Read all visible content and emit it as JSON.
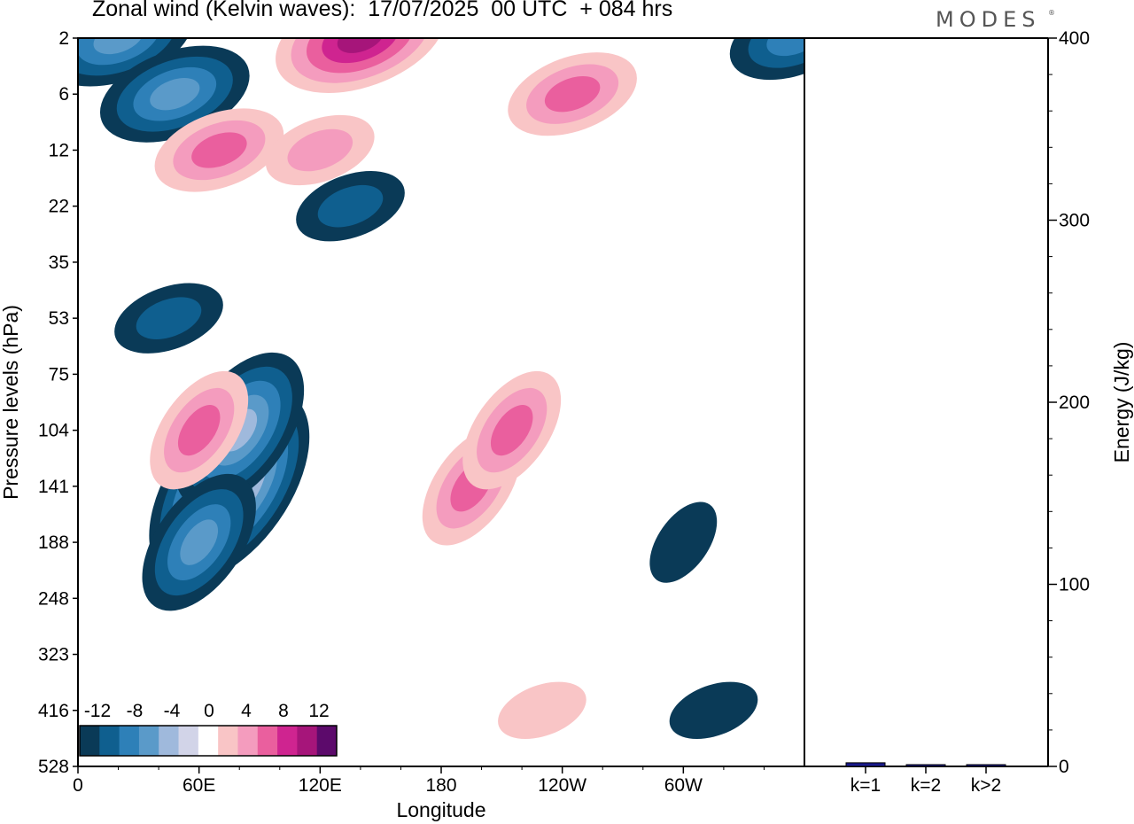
{
  "header": {
    "title": "Zonal wind (Kelvin waves):  17/07/2025  00 UTC  + 084 hrs",
    "brand": "MODES",
    "brand_mark": "®"
  },
  "colors": {
    "negative": [
      "#0a3a57",
      "#0f5f8f",
      "#2e80b8",
      "#5a9ac9",
      "#9fb9dc",
      "#d2d4e8"
    ],
    "zero": "#ffffff",
    "positive": [
      "#f9c5c6",
      "#f49cbe",
      "#ea5f9e",
      "#cf2490",
      "#a6157a",
      "#5c0a6b"
    ],
    "energy_bar": "#1a1a8c"
  },
  "chart_data": [
    {
      "type": "heatmap",
      "title": "Zonal wind (Kelvin waves):  17/07/2025  00 UTC  + 084 hrs",
      "xlabel": "Longitude",
      "ylabel": "Pressure levels (hPa)",
      "x_ticks": [
        "0",
        "60E",
        "120E",
        "180",
        "120W",
        "60W"
      ],
      "y_ticks": [
        "2",
        "6",
        "12",
        "22",
        "35",
        "53",
        "75",
        "104",
        "141",
        "188",
        "248",
        "323",
        "416",
        "528"
      ],
      "colorbar": {
        "tick_labels": [
          "-12",
          "-8",
          "-4",
          "0",
          "4",
          "8",
          "12"
        ],
        "levels": [
          -14,
          -12,
          -10,
          -8,
          -6,
          -4,
          -2,
          2,
          4,
          6,
          8,
          10,
          12,
          14
        ]
      },
      "features": [
        {
          "lon": 75,
          "level": 141,
          "value": -14
        },
        {
          "lon": 80,
          "level": 104,
          "value": -10
        },
        {
          "lon": 60,
          "level": 188,
          "value": -8
        },
        {
          "lon": 20,
          "level": 2,
          "value": -8
        },
        {
          "lon": 48,
          "level": 6,
          "value": -8
        },
        {
          "lon": 355,
          "level": 2,
          "value": -6
        },
        {
          "lon": 135,
          "level": 22,
          "value": -4
        },
        {
          "lon": 45,
          "level": 53,
          "value": -4
        },
        {
          "lon": 60,
          "level": 104,
          "value": 6
        },
        {
          "lon": 195,
          "level": 141,
          "value": 6
        },
        {
          "lon": 215,
          "level": 104,
          "value": 6
        },
        {
          "lon": 140,
          "level": 2,
          "value": 10
        },
        {
          "lon": 245,
          "level": 6,
          "value": 6
        },
        {
          "lon": 70,
          "level": 12,
          "value": 6
        },
        {
          "lon": 120,
          "level": 12,
          "value": 4
        },
        {
          "lon": 230,
          "level": 416,
          "value": 2
        },
        {
          "lon": 315,
          "level": 416,
          "value": -2
        },
        {
          "lon": 300,
          "level": 188,
          "value": -2
        }
      ]
    },
    {
      "type": "bar",
      "categories": [
        "k=1",
        "k=2",
        "k>2"
      ],
      "values": [
        2,
        0.8,
        0.8
      ],
      "ylabel": "Energy (J/kg)",
      "ylim": [
        0,
        400
      ],
      "y_ticks": [
        "0",
        "100",
        "200",
        "300",
        "400"
      ]
    }
  ]
}
